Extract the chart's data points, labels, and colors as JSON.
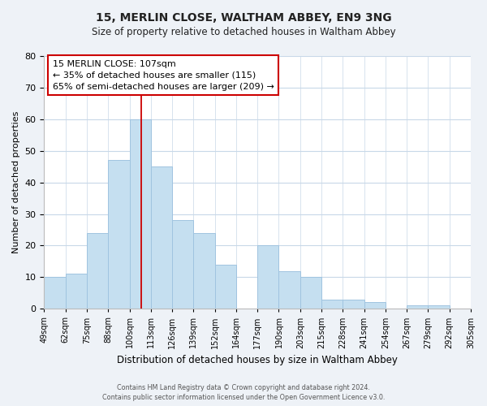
{
  "title1": "15, MERLIN CLOSE, WALTHAM ABBEY, EN9 3NG",
  "title2": "Size of property relative to detached houses in Waltham Abbey",
  "xlabel": "Distribution of detached houses by size in Waltham Abbey",
  "ylabel": "Number of detached properties",
  "bin_labels": [
    "49sqm",
    "62sqm",
    "75sqm",
    "88sqm",
    "100sqm",
    "113sqm",
    "126sqm",
    "139sqm",
    "152sqm",
    "164sqm",
    "177sqm",
    "190sqm",
    "203sqm",
    "215sqm",
    "228sqm",
    "241sqm",
    "254sqm",
    "267sqm",
    "279sqm",
    "292sqm",
    "305sqm"
  ],
  "counts": [
    10,
    11,
    24,
    47,
    60,
    45,
    28,
    24,
    14,
    0,
    20,
    12,
    10,
    3,
    3,
    2,
    0,
    1,
    1,
    0
  ],
  "bar_color": "#c5dff0",
  "bar_edge_color": "#a0c4e0",
  "vline_color": "#cc0000",
  "annotation_line1": "15 MERLIN CLOSE: 107sqm",
  "annotation_line2": "← 35% of detached houses are smaller (115)",
  "annotation_line3": "65% of semi-detached houses are larger (209) →",
  "annotation_box_color": "#ffffff",
  "annotation_box_edge": "#cc0000",
  "ylim": [
    0,
    80
  ],
  "yticks": [
    0,
    10,
    20,
    30,
    40,
    50,
    60,
    70,
    80
  ],
  "footer1": "Contains HM Land Registry data © Crown copyright and database right 2024.",
  "footer2": "Contains public sector information licensed under the Open Government Licence v3.0.",
  "background_color": "#eef2f7",
  "plot_bg_color": "#ffffff",
  "grid_color": "#c8d8e8"
}
